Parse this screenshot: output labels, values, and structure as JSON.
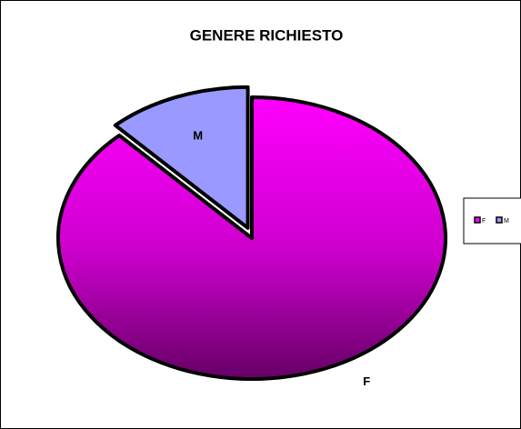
{
  "chart_data": {
    "type": "pie",
    "title": "GENERE RICHIESTO",
    "categories": [
      "F",
      "M"
    ],
    "values": [
      88,
      12
    ],
    "colors": [
      "#ff00ff",
      "#9999ff"
    ],
    "legend": "right"
  }
}
